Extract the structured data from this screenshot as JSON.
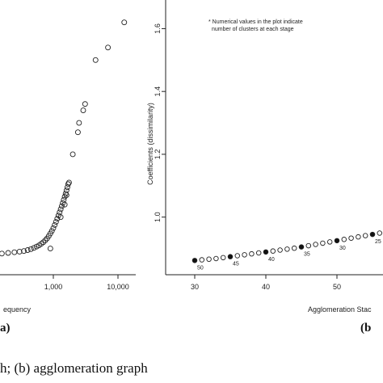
{
  "caption": "h; (b) agglomeration graph",
  "chart_data": [
    {
      "type": "scatter",
      "panel_label": "a)",
      "xlabel": "equency",
      "xscale": "log",
      "x_ticks": [
        1000,
        10000
      ],
      "x_tick_labels": [
        "1,000",
        "10,000"
      ],
      "xlim": [
        30,
        20000
      ],
      "ylim": [
        0.85,
        1.65
      ],
      "points": [
        {
          "x": 50,
          "y": 0.88
        },
        {
          "x": 70,
          "y": 0.881
        },
        {
          "x": 100,
          "y": 0.882
        },
        {
          "x": 130,
          "y": 0.883
        },
        {
          "x": 160,
          "y": 0.884
        },
        {
          "x": 200,
          "y": 0.886
        },
        {
          "x": 250,
          "y": 0.888
        },
        {
          "x": 300,
          "y": 0.89
        },
        {
          "x": 350,
          "y": 0.892
        },
        {
          "x": 400,
          "y": 0.895
        },
        {
          "x": 450,
          "y": 0.898
        },
        {
          "x": 500,
          "y": 0.902
        },
        {
          "x": 550,
          "y": 0.906
        },
        {
          "x": 600,
          "y": 0.91
        },
        {
          "x": 650,
          "y": 0.915
        },
        {
          "x": 700,
          "y": 0.92
        },
        {
          "x": 750,
          "y": 0.926
        },
        {
          "x": 800,
          "y": 0.932
        },
        {
          "x": 850,
          "y": 0.94
        },
        {
          "x": 900,
          "y": 0.948
        },
        {
          "x": 950,
          "y": 0.956
        },
        {
          "x": 1000,
          "y": 0.965
        },
        {
          "x": 1050,
          "y": 0.975
        },
        {
          "x": 1100,
          "y": 0.985
        },
        {
          "x": 1150,
          "y": 0.995
        },
        {
          "x": 1200,
          "y": 1.005
        },
        {
          "x": 1250,
          "y": 1.015
        },
        {
          "x": 1300,
          "y": 1.025
        },
        {
          "x": 1350,
          "y": 1.035
        },
        {
          "x": 1400,
          "y": 1.045
        },
        {
          "x": 1450,
          "y": 1.055
        },
        {
          "x": 1500,
          "y": 1.065
        },
        {
          "x": 1550,
          "y": 1.075
        },
        {
          "x": 1600,
          "y": 1.085
        },
        {
          "x": 1650,
          "y": 1.095
        },
        {
          "x": 1700,
          "y": 1.105
        },
        {
          "x": 1750,
          "y": 1.11
        },
        {
          "x": 900,
          "y": 0.9
        },
        {
          "x": 1300,
          "y": 1.0
        },
        {
          "x": 1500,
          "y": 1.04
        },
        {
          "x": 1600,
          "y": 1.07
        },
        {
          "x": 2000,
          "y": 1.2
        },
        {
          "x": 2400,
          "y": 1.27
        },
        {
          "x": 2500,
          "y": 1.3
        },
        {
          "x": 2900,
          "y": 1.34
        },
        {
          "x": 3100,
          "y": 1.36
        },
        {
          "x": 4500,
          "y": 1.5
        },
        {
          "x": 7000,
          "y": 1.54
        },
        {
          "x": 12500,
          "y": 1.62
        }
      ]
    },
    {
      "type": "scatter",
      "panel_label": "(b",
      "xlabel": "Agglomeration Stac",
      "ylabel": "Coefficients (dissimilarity)",
      "note": [
        "* Numerical values in the plot indicate",
        "number of clusters at each stage"
      ],
      "xlim": [
        30,
        58
      ],
      "ylim": [
        0.85,
        1.65
      ],
      "x_ticks": [
        30,
        40,
        50
      ],
      "y_ticks": [
        1.0,
        1.2,
        1.4,
        1.6
      ],
      "points": [
        {
          "x": 30,
          "y": 0.862,
          "filled": true
        },
        {
          "x": 31,
          "y": 0.864,
          "filled": false
        },
        {
          "x": 32,
          "y": 0.866,
          "filled": false
        },
        {
          "x": 33,
          "y": 0.868,
          "filled": false
        },
        {
          "x": 34,
          "y": 0.871,
          "filled": false
        },
        {
          "x": 35,
          "y": 0.874,
          "filled": true
        },
        {
          "x": 36,
          "y": 0.877,
          "filled": false
        },
        {
          "x": 37,
          "y": 0.88,
          "filled": false
        },
        {
          "x": 38,
          "y": 0.883,
          "filled": false
        },
        {
          "x": 39,
          "y": 0.886,
          "filled": false
        },
        {
          "x": 40,
          "y": 0.889,
          "filled": true
        },
        {
          "x": 41,
          "y": 0.892,
          "filled": false
        },
        {
          "x": 42,
          "y": 0.895,
          "filled": false
        },
        {
          "x": 43,
          "y": 0.898,
          "filled": false
        },
        {
          "x": 44,
          "y": 0.901,
          "filled": false
        },
        {
          "x": 45,
          "y": 0.905,
          "filled": true
        },
        {
          "x": 46,
          "y": 0.909,
          "filled": false
        },
        {
          "x": 47,
          "y": 0.913,
          "filled": false
        },
        {
          "x": 48,
          "y": 0.917,
          "filled": false
        },
        {
          "x": 49,
          "y": 0.921,
          "filled": false
        },
        {
          "x": 50,
          "y": 0.925,
          "filled": true
        },
        {
          "x": 51,
          "y": 0.929,
          "filled": false
        },
        {
          "x": 52,
          "y": 0.933,
          "filled": false
        },
        {
          "x": 53,
          "y": 0.937,
          "filled": false
        },
        {
          "x": 54,
          "y": 0.941,
          "filled": false
        },
        {
          "x": 55,
          "y": 0.945,
          "filled": true
        },
        {
          "x": 56,
          "y": 0.949,
          "filled": false
        },
        {
          "x": 57,
          "y": 0.952,
          "filled": false
        }
      ],
      "annotations": [
        {
          "text": "50",
          "x": 30,
          "y": 0.862
        },
        {
          "text": "45",
          "x": 35,
          "y": 0.874
        },
        {
          "text": "40",
          "x": 40,
          "y": 0.889
        },
        {
          "text": "35",
          "x": 45,
          "y": 0.905
        },
        {
          "text": "30",
          "x": 50,
          "y": 0.925
        },
        {
          "text": "25",
          "x": 55,
          "y": 0.945
        }
      ]
    }
  ]
}
